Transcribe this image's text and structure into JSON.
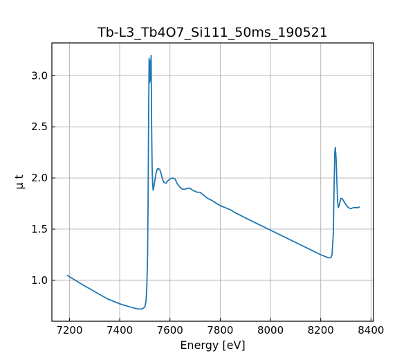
{
  "chart_data": {
    "type": "line",
    "title": "Tb-L3_Tb4O7_Si111_50ms_190521",
    "xlabel": "Energy [eV]",
    "ylabel": "μ t",
    "xlim": [
      7130,
      8410
    ],
    "ylim": [
      0.6,
      3.32
    ],
    "xticks": [
      7200,
      7400,
      7600,
      7800,
      8000,
      8200,
      8400
    ],
    "yticks": [
      1.0,
      1.5,
      2.0,
      2.5,
      3.0
    ],
    "xtick_labels": [
      "7200",
      "7400",
      "7600",
      "7800",
      "8000",
      "8200",
      "8400"
    ],
    "ytick_labels": [
      "1.0",
      "1.5",
      "2.0",
      "2.5",
      "3.0"
    ],
    "grid": true,
    "series_color": "#1f77b4",
    "series": [
      {
        "x": [
          7190,
          7250,
          7300,
          7350,
          7400,
          7440,
          7470,
          7490,
          7500,
          7505,
          7508,
          7511,
          7513,
          7515,
          7517,
          7519,
          7521,
          7523,
          7525,
          7527,
          7529,
          7531,
          7533,
          7535,
          7540,
          7545,
          7550,
          7555,
          7560,
          7565,
          7570,
          7575,
          7580,
          7585,
          7590,
          7600,
          7610,
          7620,
          7630,
          7640,
          7650,
          7660,
          7670,
          7680,
          7690,
          7700,
          7710,
          7720,
          7730,
          7740,
          7750,
          7760,
          7780,
          7800,
          7820,
          7840,
          7860,
          7900,
          7950,
          8000,
          8050,
          8100,
          8150,
          8200,
          8220,
          8230,
          8240,
          8245,
          8250,
          8253,
          8256,
          8258,
          8261,
          8264,
          8267,
          8270,
          8273,
          8276,
          8280,
          8285,
          8290,
          8300,
          8310,
          8320,
          8330,
          8340,
          8350,
          8355
        ],
        "y": [
          1.05,
          0.96,
          0.89,
          0.82,
          0.77,
          0.74,
          0.72,
          0.72,
          0.74,
          0.8,
          0.95,
          1.25,
          1.8,
          2.6,
          3.17,
          2.93,
          3.15,
          2.95,
          3.2,
          2.5,
          2.1,
          1.95,
          1.88,
          1.9,
          1.98,
          2.05,
          2.09,
          2.09,
          2.08,
          2.04,
          1.99,
          1.96,
          1.95,
          1.95,
          1.97,
          1.99,
          2.0,
          1.99,
          1.94,
          1.91,
          1.89,
          1.89,
          1.9,
          1.9,
          1.88,
          1.87,
          1.86,
          1.86,
          1.84,
          1.82,
          1.8,
          1.79,
          1.76,
          1.73,
          1.71,
          1.69,
          1.66,
          1.61,
          1.55,
          1.49,
          1.43,
          1.37,
          1.31,
          1.25,
          1.23,
          1.22,
          1.22,
          1.25,
          1.45,
          1.9,
          2.25,
          2.3,
          2.2,
          1.98,
          1.78,
          1.71,
          1.73,
          1.76,
          1.8,
          1.8,
          1.78,
          1.74,
          1.71,
          1.7,
          1.71,
          1.71,
          1.71,
          1.72
        ]
      }
    ]
  }
}
